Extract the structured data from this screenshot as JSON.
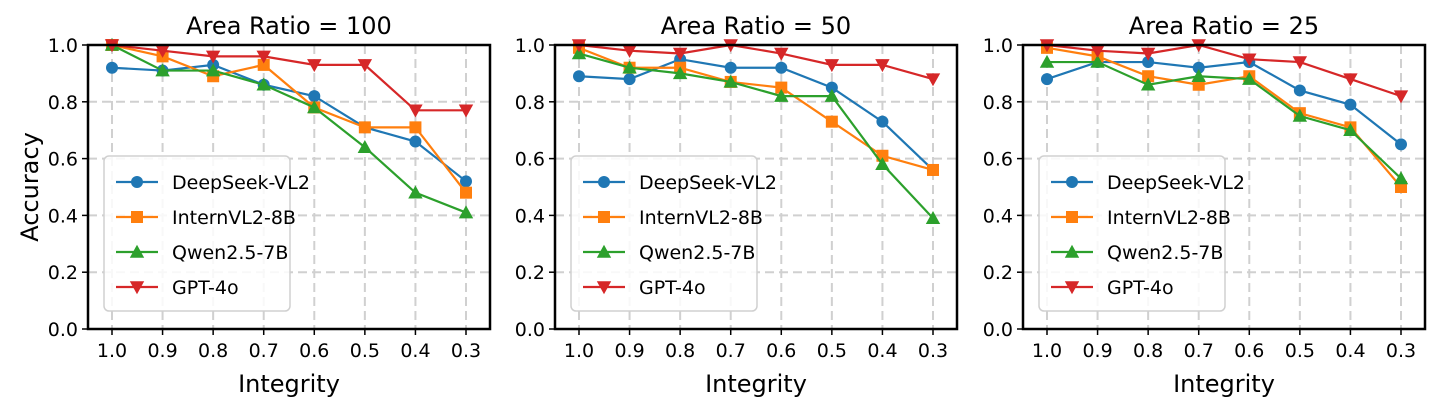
{
  "chart_data": [
    {
      "type": "line",
      "title": "Area Ratio = 100",
      "xlabel": "Integrity",
      "ylabel": "Accuracy",
      "categories": [
        "1.0",
        "0.9",
        "0.8",
        "0.7",
        "0.6",
        "0.5",
        "0.4",
        "0.3"
      ],
      "ylim": [
        0.0,
        1.0
      ],
      "yticks": [
        "0.0",
        "0.2",
        "0.4",
        "0.6",
        "0.8",
        "1.0"
      ],
      "grid": true,
      "legend_position": "lower-left",
      "series": [
        {
          "name": "DeepSeek-VL2",
          "color": "#1f77b4",
          "marker": "circle",
          "values": [
            0.92,
            0.91,
            0.93,
            0.86,
            0.82,
            0.71,
            0.66,
            0.52
          ]
        },
        {
          "name": "InternVL2-8B",
          "color": "#ff7f0e",
          "marker": "square",
          "values": [
            1.0,
            0.96,
            0.89,
            0.93,
            0.78,
            0.71,
            0.71,
            0.48
          ]
        },
        {
          "name": "Qwen2.5-7B",
          "color": "#2ca02c",
          "marker": "triangle-up",
          "values": [
            1.0,
            0.91,
            0.91,
            0.86,
            0.78,
            0.64,
            0.48,
            0.41
          ]
        },
        {
          "name": "GPT-4o",
          "color": "#d62728",
          "marker": "triangle-down",
          "values": [
            1.0,
            0.98,
            0.96,
            0.96,
            0.93,
            0.93,
            0.77,
            0.77
          ]
        }
      ]
    },
    {
      "type": "line",
      "title": "Area Ratio = 50",
      "xlabel": "Integrity",
      "ylabel": "",
      "categories": [
        "1.0",
        "0.9",
        "0.8",
        "0.7",
        "0.6",
        "0.5",
        "0.4",
        "0.3"
      ],
      "ylim": [
        0.0,
        1.0
      ],
      "yticks": [
        "0.0",
        "0.2",
        "0.4",
        "0.6",
        "0.8",
        "1.0"
      ],
      "grid": true,
      "legend_position": "lower-left",
      "series": [
        {
          "name": "DeepSeek-VL2",
          "color": "#1f77b4",
          "marker": "circle",
          "values": [
            0.89,
            0.88,
            0.95,
            0.92,
            0.92,
            0.85,
            0.73,
            0.56
          ]
        },
        {
          "name": "InternVL2-8B",
          "color": "#ff7f0e",
          "marker": "square",
          "values": [
            0.99,
            0.92,
            0.92,
            0.87,
            0.85,
            0.73,
            0.61,
            0.56
          ]
        },
        {
          "name": "Qwen2.5-7B",
          "color": "#2ca02c",
          "marker": "triangle-up",
          "values": [
            0.97,
            0.92,
            0.9,
            0.87,
            0.82,
            0.82,
            0.58,
            0.39
          ]
        },
        {
          "name": "GPT-4o",
          "color": "#d62728",
          "marker": "triangle-down",
          "values": [
            1.0,
            0.98,
            0.97,
            1.0,
            0.97,
            0.93,
            0.93,
            0.88
          ]
        }
      ]
    },
    {
      "type": "line",
      "title": "Area Ratio = 25",
      "xlabel": "Integrity",
      "ylabel": "",
      "categories": [
        "1.0",
        "0.9",
        "0.8",
        "0.7",
        "0.6",
        "0.5",
        "0.4",
        "0.3"
      ],
      "ylim": [
        0.0,
        1.0
      ],
      "yticks": [
        "0.0",
        "0.2",
        "0.4",
        "0.6",
        "0.8",
        "1.0"
      ],
      "grid": true,
      "legend_position": "lower-left",
      "series": [
        {
          "name": "DeepSeek-VL2",
          "color": "#1f77b4",
          "marker": "circle",
          "values": [
            0.88,
            0.94,
            0.94,
            0.92,
            0.94,
            0.84,
            0.79,
            0.65
          ]
        },
        {
          "name": "InternVL2-8B",
          "color": "#ff7f0e",
          "marker": "square",
          "values": [
            0.99,
            0.96,
            0.89,
            0.86,
            0.89,
            0.76,
            0.71,
            0.5
          ]
        },
        {
          "name": "Qwen2.5-7B",
          "color": "#2ca02c",
          "marker": "triangle-up",
          "values": [
            0.94,
            0.94,
            0.86,
            0.89,
            0.88,
            0.75,
            0.7,
            0.53
          ]
        },
        {
          "name": "GPT-4o",
          "color": "#d62728",
          "marker": "triangle-down",
          "values": [
            1.0,
            0.98,
            0.97,
            1.0,
            0.95,
            0.94,
            0.88,
            0.82
          ]
        }
      ]
    }
  ]
}
